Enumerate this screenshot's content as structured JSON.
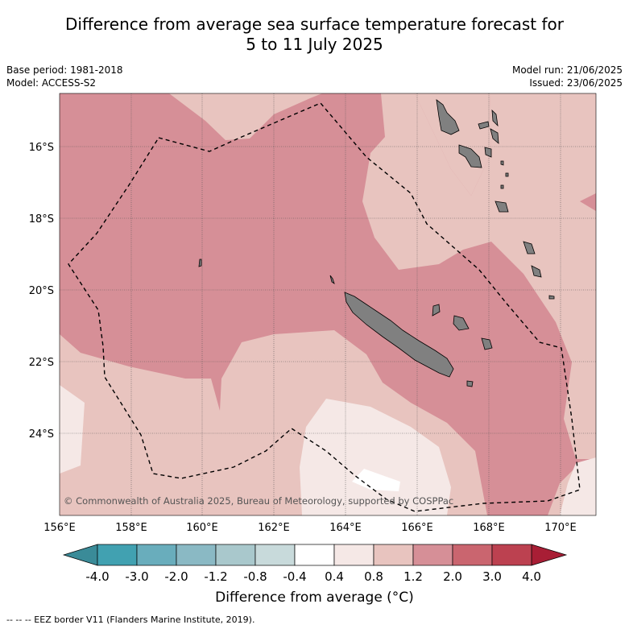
{
  "title_line1": "Difference from average sea surface temperature forecast for",
  "title_line2": "5 to 11 July 2025",
  "meta_left": [
    "Base period: 1981-2018",
    "Model: ACCESS-S2"
  ],
  "meta_right": [
    "Model run: 21/06/2025",
    "Issued: 23/06/2025"
  ],
  "map": {
    "lon_range": [
      156,
      171
    ],
    "lat_range": [
      -26.0,
      -14.5
    ],
    "lon_ticks": [
      "156°E",
      "158°E",
      "160°E",
      "162°E",
      "164°E",
      "166°E",
      "168°E",
      "170°E"
    ],
    "lat_ticks": [
      "16°S",
      "18°S",
      "20°S",
      "22°S",
      "24°S"
    ],
    "copyright": "© Commonwealth of Australia 2025, Bureau of Meteorology, supported by COSPPac"
  },
  "colorbar": {
    "ticks": [
      "-4.0",
      "-3.0",
      "-2.0",
      "-1.2",
      "-0.8",
      "-0.4",
      "0.4",
      "0.8",
      "1.2",
      "2.0",
      "3.0",
      "4.0"
    ],
    "colors": [
      "#41a1b1",
      "#69adbc",
      "#8ab9c4",
      "#a9c8cc",
      "#c8dadb",
      "#ffffff",
      "#f5e8e6",
      "#e8c4bf",
      "#d68f97",
      "#ca656f",
      "#bc4150"
    ],
    "under_color": "#3a8b98",
    "over_color": "#a81e35",
    "label": "Difference from average (°C)"
  },
  "legend_footer": "--  --  -- EEZ border V11 (Flanders Marine Institute, 2019)."
}
